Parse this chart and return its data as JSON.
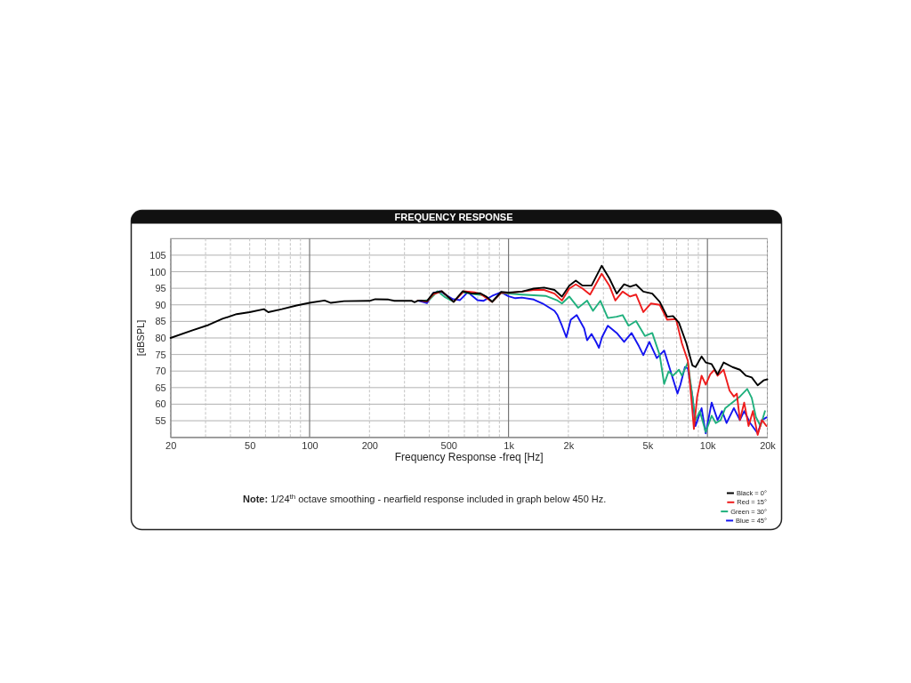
{
  "chart_data": {
    "type": "line",
    "title": "FREQUENCY RESPONSE",
    "xlabel": "Frequency Response -freq [Hz]",
    "ylabel": "[dBSPL]",
    "annotations": [
      "Note: 1/24$^{th}$ octave smoothing - nearfield response included in graph below 450 Hz."
    ],
    "log": "x",
    "grid": true,
    "legend": "bottom right",
    "xlim": [
      20,
      20000
    ],
    "ylim": [
      50,
      110
    ],
    "yticks": [
      55,
      60,
      65,
      70,
      75,
      80,
      85,
      90,
      95,
      100,
      105
    ],
    "xticks": [
      20,
      {
        "value": 30,
        "label": null
      },
      {
        "value": 40,
        "label": null
      },
      50,
      {
        "value": 60,
        "label": null
      },
      {
        "value": 70,
        "label": null
      },
      {
        "value": 80,
        "label": null
      },
      {
        "value": 90,
        "label": null
      },
      100,
      200,
      {
        "value": 300,
        "label": null
      },
      {
        "value": 400,
        "label": null
      },
      500,
      {
        "value": 600,
        "label": null
      },
      {
        "value": 700,
        "label": null
      },
      {
        "value": 800,
        "label": null
      },
      {
        "value": 900,
        "label": null
      },
      {
        "value": 1000,
        "label": "1k"
      },
      {
        "value": 2000,
        "label": "2k"
      },
      {
        "value": 3000,
        "label": null
      },
      {
        "value": 4000,
        "label": null
      },
      {
        "value": 5000,
        "label": "5k"
      },
      {
        "value": 6000,
        "label": null
      },
      {
        "value": 7000,
        "label": null
      },
      {
        "value": 8000,
        "label": null
      },
      {
        "value": 9000,
        "label": null
      },
      {
        "value": 10000,
        "label": "10k"
      },
      {
        "value": 20000,
        "label": "20k"
      }
    ],
    "series": [
      {
        "name": "Black = 0°",
        "color": "#000000",
        "x": [
          20,
          26,
          31,
          36.5,
          43,
          50,
          59,
          62,
          72.5,
          86,
          100,
          119,
          128,
          149,
          200,
          214,
          249,
          267,
          327,
          337,
          348,
          363,
          389,
          419,
          462,
          530,
          588,
          652,
          722,
          774,
          828,
          918,
          1000,
          1167,
          1339,
          1510,
          1702,
          1856,
          2020,
          2179,
          2358,
          2614,
          2940,
          3214,
          3500,
          3812,
          4085,
          4376,
          4761,
          5280,
          5757,
          6277,
          6714,
          7190,
          7837,
          8405,
          8713,
          9343,
          9805,
          10500,
          11250,
          12060,
          13360,
          14560,
          15600,
          16700,
          17890,
          19160,
          20000
        ],
        "values": [
          80.0,
          82.4,
          83.9,
          85.8,
          87.2,
          87.8,
          88.7,
          87.8,
          88.7,
          89.8,
          90.6,
          91.3,
          90.6,
          91.1,
          91.2,
          91.7,
          91.6,
          91.2,
          91.2,
          90.8,
          91.2,
          91.3,
          91.1,
          93.6,
          94.1,
          90.9,
          94.1,
          93.4,
          93.5,
          92.5,
          90.9,
          93.9,
          93.7,
          94.0,
          94.9,
          95.2,
          94.5,
          92.5,
          95.8,
          97.3,
          95.8,
          95.8,
          101.8,
          98.0,
          93.4,
          96.2,
          95.5,
          96.1,
          94.0,
          93.4,
          90.9,
          86.4,
          86.6,
          84.6,
          78.4,
          71.7,
          71.2,
          74.4,
          72.6,
          72.1,
          69.0,
          72.6,
          71.2,
          70.4,
          68.6,
          68.1,
          65.7,
          67.2,
          67.5
        ]
      },
      {
        "name": "Red = 15°",
        "color": "#ee1c1c",
        "x": [
          350,
          389,
          419,
          462,
          530,
          596,
          673,
          722,
          828,
          918,
          1000,
          1167,
          1339,
          1510,
          1702,
          1856,
          2020,
          2179,
          2358,
          2571,
          2940,
          3214,
          3443,
          3747,
          4085,
          4376,
          4761,
          5193,
          5757,
          6277,
          6950,
          7440,
          7978,
          8405,
          8550,
          8877,
          9343,
          9805,
          10330,
          10850,
          11250,
          12060,
          12920,
          13580,
          14050,
          14560,
          15300,
          16100,
          16930,
          17890,
          18800,
          19800
        ],
        "values": [
          91.3,
          91.0,
          93.2,
          94.1,
          90.9,
          94.1,
          93.8,
          93.3,
          90.9,
          93.6,
          93.6,
          94.0,
          94.5,
          94.5,
          93.4,
          91.3,
          94.9,
          96.2,
          94.9,
          93.1,
          99.4,
          95.8,
          91.3,
          94.0,
          92.5,
          93.1,
          87.8,
          90.4,
          90.0,
          85.5,
          85.7,
          78.4,
          73.0,
          57.9,
          52.5,
          62.3,
          68.6,
          65.9,
          69.0,
          70.4,
          68.6,
          70.4,
          64.1,
          62.3,
          63.2,
          55.2,
          60.5,
          53.4,
          57.9,
          50.7,
          55.2,
          53.4
        ]
      },
      {
        "name": "Green = 30°",
        "color": "#1fb07d",
        "x": [
          375,
          400,
          440,
          480,
          530,
          588,
          673,
          747,
          828,
          918,
          1000,
          1167,
          1339,
          1536,
          1763,
          1856,
          2020,
          2240,
          2483,
          2659,
          2897,
          3157,
          3500,
          3747,
          4012,
          4376,
          4848,
          5280,
          5757,
          6060,
          6379,
          6714,
          7190,
          7440,
          7970,
          8405,
          8713,
          9156,
          9805,
          10500,
          11020,
          11650,
          12290,
          13360,
          14560,
          15850,
          16700,
          17530,
          18480,
          19470
        ],
        "values": [
          91.2,
          91.5,
          94.1,
          92.3,
          90.9,
          93.8,
          93.2,
          92.9,
          90.9,
          93.6,
          93.4,
          93.1,
          92.9,
          92.7,
          91.3,
          90.4,
          92.5,
          89.1,
          91.3,
          88.2,
          91.2,
          86.0,
          86.4,
          86.9,
          83.7,
          85.1,
          80.6,
          81.5,
          74.8,
          66.1,
          69.9,
          68.6,
          70.4,
          68.6,
          72.6,
          62.3,
          55.2,
          57.9,
          51.6,
          56.5,
          54.3,
          55.2,
          58.8,
          60.5,
          62.3,
          64.6,
          61.9,
          56.1,
          53.4,
          57.9
        ]
      },
      {
        "name": "Blue = 45°",
        "color": "#1414f0",
        "x": [
          355,
          389,
          419,
          453,
          522,
          569,
          624,
          698,
          747,
          828,
          918,
          1000,
          1082,
          1167,
          1339,
          1484,
          1702,
          1763,
          1856,
          1953,
          2056,
          2202,
          2400,
          2483,
          2614,
          2755,
          2847,
          2950,
          3157,
          3500,
          3812,
          4156,
          4525,
          4761,
          5104,
          5564,
          6060,
          6492,
          7070,
          7315,
          7707,
          7970,
          8405,
          8713,
          9343,
          9805,
          10500,
          11250,
          11850,
          12480,
          13580,
          14560,
          15300,
          16410,
          17890,
          18800,
          19800
        ],
        "values": [
          91.2,
          90.5,
          93.6,
          94.1,
          91.8,
          91.4,
          93.8,
          91.4,
          91.2,
          92.7,
          93.8,
          92.6,
          92.0,
          92.2,
          91.6,
          90.4,
          88.2,
          86.9,
          83.7,
          80.2,
          85.5,
          86.9,
          82.9,
          79.3,
          81.2,
          78.8,
          77.0,
          80.2,
          83.7,
          81.5,
          78.8,
          81.5,
          77.5,
          74.8,
          78.8,
          73.9,
          76.2,
          70.4,
          63.2,
          65.9,
          71.2,
          70.8,
          62.3,
          53.4,
          58.8,
          51.2,
          60.5,
          55.2,
          57.9,
          54.3,
          58.8,
          55.2,
          57.9,
          54.3,
          51.2,
          55.2,
          56.0
        ]
      }
    ]
  }
}
